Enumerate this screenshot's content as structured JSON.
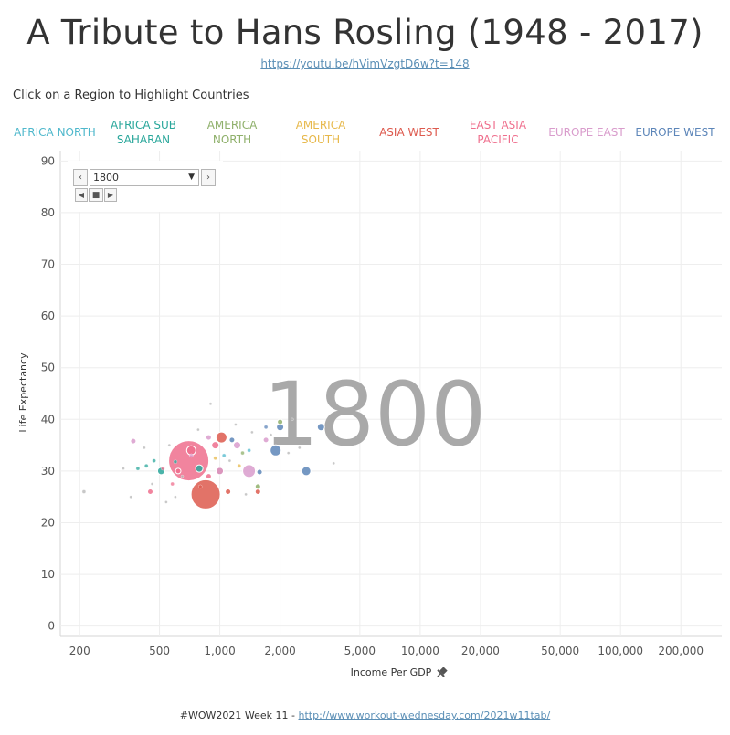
{
  "header": {
    "title": "A Tribute to Hans Rosling (1948 - 2017)",
    "link": "https://youtu.be/hVimVzgtD6w?t=148",
    "hint": "Click on a Region to Highlight Countries"
  },
  "regions": [
    {
      "lines": [
        "AFRICA NORTH"
      ],
      "color": "#4fb8cc"
    },
    {
      "lines": [
        "AFRICA SUB",
        "SAHARAN"
      ],
      "color": "#2aa79b"
    },
    {
      "lines": [
        "AMERICA",
        "NORTH"
      ],
      "color": "#8fb06b"
    },
    {
      "lines": [
        "AMERICA",
        "SOUTH"
      ],
      "color": "#e7b84a"
    },
    {
      "lines": [
        "ASIA WEST"
      ],
      "color": "#dd5a4e"
    },
    {
      "lines": [
        "EAST ASIA",
        "PACIFIC"
      ],
      "color": "#ef6f8d"
    },
    {
      "lines": [
        "EUROPE EAST"
      ],
      "color": "#d99ccc"
    },
    {
      "lines": [
        "EUROPE WEST"
      ],
      "color": "#5d86b9"
    }
  ],
  "controls": {
    "year_value": "1800",
    "prev_icon": "chevron-left-icon",
    "next_icon": "chevron-right-icon",
    "dropdown_icon": "caret-down-icon",
    "play_back_icon": "play-reverse-icon",
    "stop_icon": "stop-icon",
    "play_icon": "play-icon"
  },
  "chart_data": {
    "type": "scatter",
    "year_label": "1800",
    "xlabel": "Income Per GDP",
    "ylabel": "Life Expectancy",
    "x_scale": "log",
    "xlim": [
      160,
      320000
    ],
    "ylim": [
      -2,
      92
    ],
    "x_ticks": [
      200,
      500,
      1000,
      2000,
      5000,
      10000,
      20000,
      50000,
      100000,
      200000
    ],
    "x_tick_labels": [
      "200",
      "500",
      "1,000",
      "2,000",
      "5,000",
      "10,000",
      "20,000",
      "50,000",
      "100,000",
      "200,000"
    ],
    "y_ticks": [
      0,
      10,
      20,
      30,
      40,
      50,
      60,
      70,
      80,
      90
    ],
    "y_tick_labels": [
      "0",
      "10",
      "20",
      "30",
      "40",
      "50",
      "60",
      "70",
      "80",
      "90"
    ],
    "grid": true,
    "xlabel_icon": "pin-icon",
    "series": [
      {
        "region": "East Asia Pacific",
        "color": "#ef6f8d",
        "points": [
          {
            "x": 700,
            "y": 32.0,
            "size": 22
          },
          {
            "x": 720,
            "y": 34.0,
            "size": 5
          },
          {
            "x": 950,
            "y": 35.0,
            "size": 4
          },
          {
            "x": 620,
            "y": 30.0,
            "size": 3
          },
          {
            "x": 880,
            "y": 29.0,
            "size": 3
          },
          {
            "x": 450,
            "y": 26.0,
            "size": 3
          },
          {
            "x": 520,
            "y": 30.5,
            "size": 2
          },
          {
            "x": 580,
            "y": 27.5,
            "size": 2
          }
        ]
      },
      {
        "region": "Asia West",
        "color": "#dd5a4e",
        "points": [
          {
            "x": 850,
            "y": 25.5,
            "size": 16
          },
          {
            "x": 1020,
            "y": 36.5,
            "size": 6
          },
          {
            "x": 1100,
            "y": 26.0,
            "size": 3
          },
          {
            "x": 1550,
            "y": 26.0,
            "size": 3
          },
          {
            "x": 800,
            "y": 27.0,
            "size": 2
          },
          {
            "x": 1000,
            "y": 30.0,
            "size": 4
          }
        ]
      },
      {
        "region": "Europe East",
        "color": "#d99ccc",
        "points": [
          {
            "x": 1400,
            "y": 30.0,
            "size": 7
          },
          {
            "x": 1220,
            "y": 35.0,
            "size": 4
          },
          {
            "x": 1000,
            "y": 30.0,
            "size": 4
          },
          {
            "x": 370,
            "y": 35.8,
            "size": 3
          },
          {
            "x": 1700,
            "y": 36.0,
            "size": 3
          },
          {
            "x": 880,
            "y": 36.5,
            "size": 3
          },
          {
            "x": 720,
            "y": 33.0,
            "size": 2
          }
        ]
      },
      {
        "region": "Europe West",
        "color": "#5d86b9",
        "points": [
          {
            "x": 1900,
            "y": 34.0,
            "size": 6
          },
          {
            "x": 2700,
            "y": 30.0,
            "size": 5
          },
          {
            "x": 2000,
            "y": 38.5,
            "size": 4
          },
          {
            "x": 3200,
            "y": 38.5,
            "size": 4
          },
          {
            "x": 1580,
            "y": 29.8,
            "size": 3
          },
          {
            "x": 1150,
            "y": 36.0,
            "size": 3
          },
          {
            "x": 1700,
            "y": 38.5,
            "size": 2
          }
        ]
      },
      {
        "region": "Africa Sub Saharan",
        "color": "#2aa79b",
        "points": [
          {
            "x": 510,
            "y": 30.0,
            "size": 4
          },
          {
            "x": 790,
            "y": 30.5,
            "size": 4
          },
          {
            "x": 430,
            "y": 31.0,
            "size": 2
          },
          {
            "x": 600,
            "y": 31.8,
            "size": 2
          },
          {
            "x": 470,
            "y": 32.0,
            "size": 2
          },
          {
            "x": 390,
            "y": 30.5,
            "size": 2
          }
        ]
      },
      {
        "region": "America North",
        "color": "#8fb06b",
        "points": [
          {
            "x": 1550,
            "y": 27.0,
            "size": 3
          },
          {
            "x": 2000,
            "y": 39.5,
            "size": 3
          },
          {
            "x": 1300,
            "y": 33.5,
            "size": 2
          }
        ]
      },
      {
        "region": "America South",
        "color": "#e7b84a",
        "points": [
          {
            "x": 1250,
            "y": 31.0,
            "size": 2
          },
          {
            "x": 950,
            "y": 32.5,
            "size": 2
          }
        ]
      },
      {
        "region": "Africa North",
        "color": "#4fb8cc",
        "points": [
          {
            "x": 1400,
            "y": 34.0,
            "size": 2
          },
          {
            "x": 1050,
            "y": 33.0,
            "size": 2
          }
        ]
      },
      {
        "region": "Other",
        "color": "#b6b6b6",
        "points": [
          {
            "x": 210,
            "y": 26.0,
            "size": 2
          },
          {
            "x": 360,
            "y": 25.0,
            "size": 1.5
          },
          {
            "x": 330,
            "y": 30.5,
            "size": 1.5
          },
          {
            "x": 540,
            "y": 24.0,
            "size": 1.5
          },
          {
            "x": 600,
            "y": 25.0,
            "size": 1.5
          },
          {
            "x": 650,
            "y": 29.0,
            "size": 1.5
          },
          {
            "x": 900,
            "y": 43.0,
            "size": 1.5
          },
          {
            "x": 2300,
            "y": 40.0,
            "size": 1.5
          },
          {
            "x": 3700,
            "y": 31.5,
            "size": 1.5
          },
          {
            "x": 2500,
            "y": 34.5,
            "size": 1.5
          },
          {
            "x": 1200,
            "y": 39.0,
            "size": 1.5
          },
          {
            "x": 1800,
            "y": 37.0,
            "size": 1.5
          },
          {
            "x": 780,
            "y": 38.0,
            "size": 1.5
          },
          {
            "x": 1120,
            "y": 32.0,
            "size": 1.5
          },
          {
            "x": 1350,
            "y": 25.5,
            "size": 1.5
          },
          {
            "x": 2200,
            "y": 33.5,
            "size": 1.5
          },
          {
            "x": 420,
            "y": 34.5,
            "size": 1.5
          },
          {
            "x": 460,
            "y": 27.5,
            "size": 1.5
          },
          {
            "x": 560,
            "y": 35.0,
            "size": 1.5
          },
          {
            "x": 1450,
            "y": 37.5,
            "size": 1.5
          }
        ]
      }
    ]
  },
  "footer": {
    "text": "#WOW2021 Week 11 - ",
    "link": "http://www.workout-wednesday.com/2021w11tab/"
  }
}
